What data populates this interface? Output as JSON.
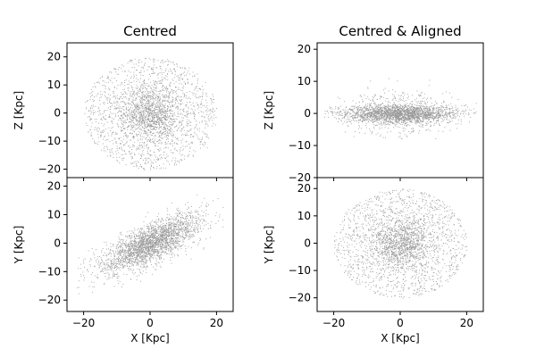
{
  "chart_data": [
    {
      "type": "scatter",
      "title": "Centred",
      "xlabel": "",
      "ylabel": "Z [Kpc]",
      "xlim": [
        -25,
        25
      ],
      "ylim": [
        -23,
        25
      ],
      "xticks": [
        -20,
        0,
        20
      ],
      "yticks": [
        20,
        10,
        0,
        -10,
        -20
      ],
      "show_x_tick_labels": false,
      "point_color": "#999999",
      "grid": false,
      "distribution": {
        "shape": "roughly spherical halo with dense core",
        "x_extent": [
          -22,
          22
        ],
        "y_extent": [
          -21,
          23
        ],
        "center": [
          0,
          0
        ],
        "core_radius": 7
      }
    },
    {
      "type": "scatter",
      "title": "",
      "xlabel": "X [Kpc]",
      "ylabel": "Y [Kpc]",
      "xlim": [
        -25,
        25
      ],
      "ylim": [
        -24,
        23
      ],
      "xticks": [
        -20,
        0,
        20
      ],
      "yticks": [
        20,
        10,
        0,
        -10,
        -20
      ],
      "show_x_tick_labels": true,
      "point_color": "#999999",
      "grid": false,
      "distribution": {
        "shape": "elongated tilted bar",
        "x_extent": [
          -22,
          22
        ],
        "y_extent": [
          -20,
          18
        ],
        "center": [
          0,
          0
        ],
        "tilt_degrees": 30
      }
    },
    {
      "type": "scatter",
      "title": "Centred & Aligned",
      "xlabel": "",
      "ylabel": "Z [Kpc]",
      "xlim": [
        -25,
        25
      ],
      "ylim": [
        -20,
        22
      ],
      "xticks": [
        -20,
        0,
        20
      ],
      "yticks": [
        20,
        10,
        0,
        -10,
        -20
      ],
      "show_x_tick_labels": false,
      "point_color": "#999999",
      "grid": false,
      "distribution": {
        "shape": "flattened edge-on disk",
        "x_extent": [
          -23,
          23
        ],
        "y_extent": [
          -8,
          12
        ],
        "center": [
          0,
          0
        ]
      }
    },
    {
      "type": "scatter",
      "title": "",
      "xlabel": "X [Kpc]",
      "ylabel": "Y [Kpc]",
      "xlim": [
        -25,
        25
      ],
      "ylim": [
        -25,
        24
      ],
      "xticks": [
        -20,
        0,
        20
      ],
      "yticks": [
        20,
        10,
        0,
        -10,
        -20
      ],
      "show_x_tick_labels": true,
      "point_color": "#999999",
      "grid": false,
      "distribution": {
        "shape": "face-on round disk with dense core",
        "x_extent": [
          -23,
          23
        ],
        "y_extent": [
          -22,
          22
        ],
        "center": [
          0,
          0
        ],
        "core_radius": 7
      }
    }
  ]
}
